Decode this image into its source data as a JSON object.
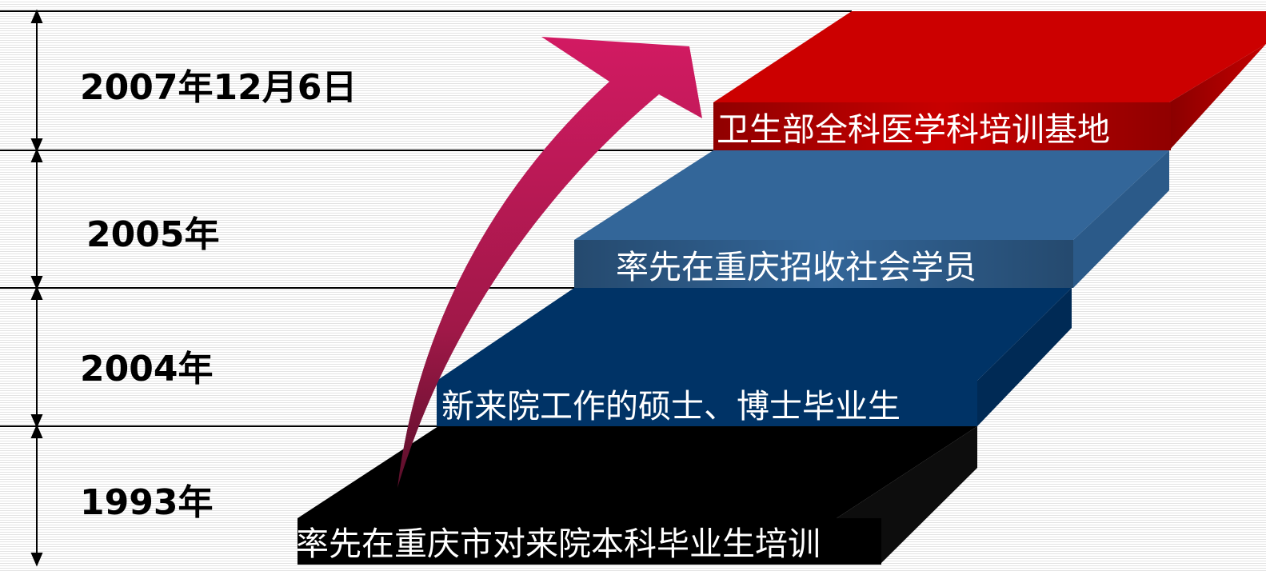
{
  "timeline": {
    "years": [
      {
        "label": "2007年12月6日"
      },
      {
        "label": "2005年"
      },
      {
        "label": "2004年"
      },
      {
        "label": "1993年"
      }
    ]
  },
  "steps": [
    {
      "label": "率先在重庆市对来院本科毕业生培训",
      "color": "#000000"
    },
    {
      "label": "新来院工作的硕士、博士毕业生",
      "color": "#003366"
    },
    {
      "label": "率先在重庆招收社会学员",
      "color": "#336699"
    },
    {
      "label": "卫生部全科医学科培训基地",
      "color": "#cc0000"
    }
  ],
  "colors": {
    "arrow": "#cc1a60",
    "arrow_dark": "#5a0f2a"
  }
}
